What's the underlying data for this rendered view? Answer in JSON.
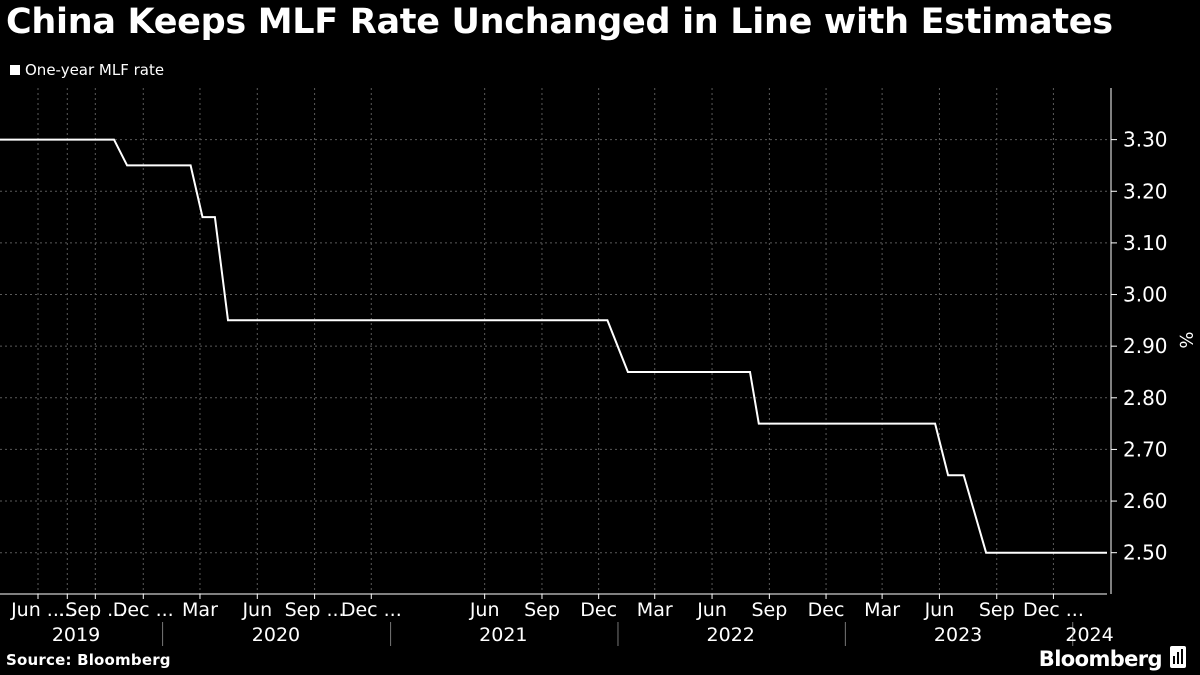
{
  "header": {
    "title": "China Keeps MLF Rate Unchanged in Line with Estimates"
  },
  "footer": {
    "source": "Source: Bloomberg",
    "brand": "Bloomberg"
  },
  "colors": {
    "background": "#000000",
    "line": "#ffffff",
    "grid": "#5a5a5a",
    "text": "#ffffff"
  },
  "chart_data": {
    "type": "line",
    "title": "China Keeps MLF Rate Unchanged in Line with Estimates",
    "ylabel": "%",
    "ylim": [
      2.42,
      3.4
    ],
    "y_axis_side": "right",
    "yticks": [
      2.5,
      2.6,
      2.7,
      2.8,
      2.9,
      3.0,
      3.1,
      3.2,
      3.3
    ],
    "ytick_labels": [
      "2.50",
      "2.60",
      "2.70",
      "2.80",
      "2.90",
      "3.00",
      "3.10",
      "3.20",
      "3.30"
    ],
    "xlim": [
      "2019-04-15",
      "2024-02-25"
    ],
    "xticks": [
      {
        "date": "2019-06-15",
        "label": "Jun ..."
      },
      {
        "date": "2019-08-01",
        "label": "..."
      },
      {
        "date": "2019-09-15",
        "label": "Sep ..."
      },
      {
        "date": "2019-12-01",
        "label": "Dec ..."
      },
      {
        "date": "2020-03-01",
        "label": "Mar"
      },
      {
        "date": "2020-06-01",
        "label": "Jun"
      },
      {
        "date": "2020-09-01",
        "label": "Sep ..."
      },
      {
        "date": "2020-12-01",
        "label": "Dec ..."
      },
      {
        "date": "2021-06-01",
        "label": "Jun"
      },
      {
        "date": "2021-09-01",
        "label": "Sep"
      },
      {
        "date": "2021-12-01",
        "label": "Dec"
      },
      {
        "date": "2022-03-01",
        "label": "Mar"
      },
      {
        "date": "2022-06-01",
        "label": "Jun"
      },
      {
        "date": "2022-09-01",
        "label": "Sep"
      },
      {
        "date": "2022-12-01",
        "label": "Dec"
      },
      {
        "date": "2023-03-01",
        "label": "Mar"
      },
      {
        "date": "2023-06-01",
        "label": "Jun"
      },
      {
        "date": "2023-09-01",
        "label": "Sep"
      },
      {
        "date": "2023-12-01",
        "label": "Dec ..."
      }
    ],
    "years": [
      {
        "label": "2019",
        "center": "2019-08-15"
      },
      {
        "label": "2020",
        "center": "2020-07-01"
      },
      {
        "label": "2021",
        "center": "2021-07-01"
      },
      {
        "label": "2022",
        "center": "2022-07-01"
      },
      {
        "label": "2023",
        "center": "2023-07-01"
      },
      {
        "label": "2024",
        "center": "2024-01-28"
      }
    ],
    "year_dividers": [
      "2020-01-01",
      "2021-01-01",
      "2022-01-01",
      "2023-01-01",
      "2024-01-01"
    ],
    "grid": true,
    "series": [
      {
        "name": "One-year MLF rate",
        "points": [
          {
            "x": "2019-04-15",
            "y": 3.3
          },
          {
            "x": "2019-10-15",
            "y": 3.3
          },
          {
            "x": "2019-11-05",
            "y": 3.25
          },
          {
            "x": "2020-02-15",
            "y": 3.25
          },
          {
            "x": "2020-03-05",
            "y": 3.15
          },
          {
            "x": "2020-03-25",
            "y": 3.15
          },
          {
            "x": "2020-04-15",
            "y": 2.95
          },
          {
            "x": "2021-12-15",
            "y": 2.95
          },
          {
            "x": "2022-01-17",
            "y": 2.85
          },
          {
            "x": "2022-08-01",
            "y": 2.85
          },
          {
            "x": "2022-08-15",
            "y": 2.75
          },
          {
            "x": "2023-05-25",
            "y": 2.75
          },
          {
            "x": "2023-06-15",
            "y": 2.65
          },
          {
            "x": "2023-07-10",
            "y": 2.65
          },
          {
            "x": "2023-08-15",
            "y": 2.5
          },
          {
            "x": "2024-02-25",
            "y": 2.5
          }
        ]
      }
    ]
  }
}
